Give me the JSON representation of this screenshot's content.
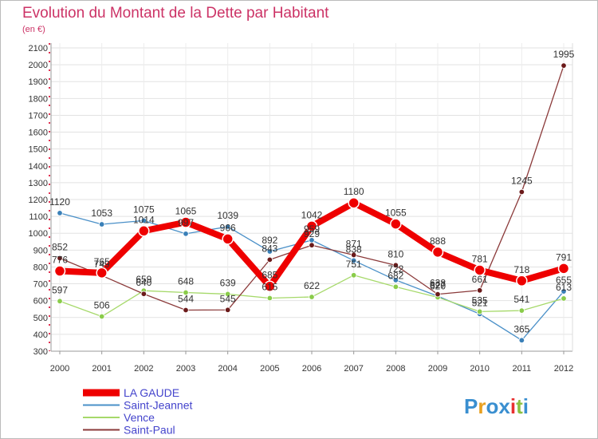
{
  "chart_data": {
    "type": "line",
    "title": "Evolution du Montant de la Dette par Habitant",
    "subtitle": "(en €)",
    "xlabel": "",
    "ylabel": "",
    "ylim": [
      300,
      2100
    ],
    "y_ticks": [
      300,
      400,
      500,
      600,
      700,
      800,
      900,
      1000,
      1100,
      1200,
      1300,
      1400,
      1500,
      1600,
      1700,
      1800,
      1900,
      2000,
      2100
    ],
    "grid": true,
    "legend_position": "bottom-left",
    "x": [
      "2000",
      "2001",
      "2002",
      "2003",
      "2004",
      "2005",
      "2006",
      "2007",
      "2008",
      "2009",
      "2010",
      "2011",
      "2012"
    ],
    "series": [
      {
        "name": "Saint-Jeannet",
        "color": "#4a90c8",
        "marker_color": "#3a80b8",
        "values": [
          1120,
          1053,
          1075,
          997,
          1039,
          892,
          959,
          838,
          722,
          627,
          521,
          365,
          655
        ],
        "labels": [
          "1120",
          "1053",
          "1075",
          "997",
          "1039",
          "892",
          "959",
          "838",
          "722",
          "627",
          "521",
          "365",
          "655"
        ]
      },
      {
        "name": "Vence",
        "color": "#a6d96a",
        "marker_color": "#8acc4a",
        "values": [
          597,
          506,
          659,
          648,
          639,
          615,
          622,
          751,
          682,
          620,
          535,
          541,
          613
        ],
        "labels": [
          "597",
          "506",
          "659",
          "648",
          "639",
          "615",
          "622",
          "751",
          "682",
          "620",
          "535",
          "541",
          "613"
        ]
      },
      {
        "name": "Saint-Paul",
        "color": "#8b3a3a",
        "marker_color": "#6b1a1a",
        "values": [
          852,
          749,
          640,
          544,
          545,
          843,
          929,
          871,
          810,
          638,
          661,
          1245,
          1995
        ],
        "labels": [
          "852",
          "749",
          "640",
          "544",
          "545",
          "843",
          "929",
          "871",
          "810",
          "638",
          "661",
          "1245",
          "1995"
        ]
      },
      {
        "name": "LA GAUDE",
        "color": "#ee0000",
        "marker_color": "#ee0000",
        "bold": true,
        "values": [
          776,
          765,
          1014,
          1065,
          966,
          685,
          1042,
          1180,
          1055,
          888,
          781,
          718,
          791
        ],
        "labels": [
          "776",
          "765",
          "1014",
          "1065",
          "966",
          "685",
          "1042",
          "1180",
          "1055",
          "888",
          "781",
          "718",
          "791"
        ]
      }
    ],
    "legend": [
      "LA GAUDE",
      "Saint-Jeannet",
      "Vence",
      "Saint-Paul"
    ],
    "legend_colors": [
      "#ee0000",
      "#4a90c8",
      "#a6d96a",
      "#8b3a3a"
    ]
  },
  "logo": {
    "text": "Proxiti",
    "colors": [
      "#3a8fd0",
      "#e8a020",
      "#3a8fd0",
      "#3a8fd0",
      "#e83030",
      "#8ac040",
      "#3a8fd0"
    ]
  },
  "colors": {
    "title": "#cc3366",
    "axis_text": "#333333",
    "grid": "#dddddd",
    "frame": "#999999"
  }
}
